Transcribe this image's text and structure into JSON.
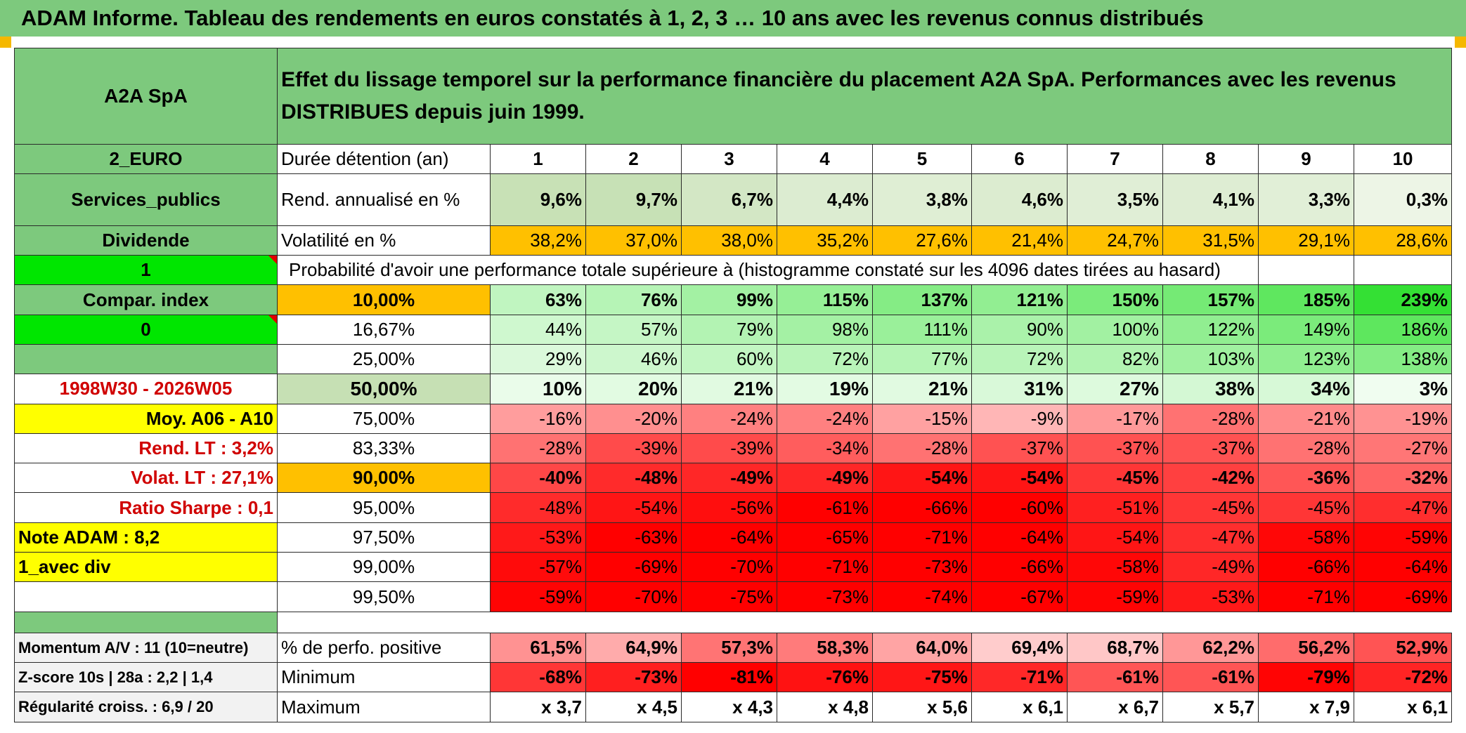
{
  "title": "ADAM Informe. Tableau des rendements en euros constatés à 1, 2, 3 … 10 ans avec les revenus connus distribués",
  "colors": {
    "header_green": "#7dc97d",
    "light_green": "#c6e0b4",
    "bright_green": "#00e600",
    "yellow": "#ffff00",
    "orange": "#ffc000",
    "red_text": "#d00000"
  },
  "side": {
    "name": "A2A SpA",
    "currency": "2_EURO",
    "sector": "Services_publics",
    "income_type": "Dividende",
    "flag1": "1",
    "compar_index": "Compar. index",
    "flag2": "0",
    "period": "1998W30 - 2026W05",
    "moy": "Moy. A06 - A10",
    "rend_lt": "Rend. LT :   3,2%",
    "volat_lt": "Volat. LT :   27,1%",
    "sharpe": "Ratio Sharpe :    0,1",
    "note": "Note ADAM : 8,2",
    "avec_div": "1_avec div",
    "momentum": "Momentum A/V : 11 (10=neutre)",
    "zscore": "Z-score 10s | 28a : 2,2 | 1,4",
    "regularite": "Régularité croiss. : 6,9 / 20"
  },
  "header": {
    "description": "Effet du lissage temporel sur la performance financière du placement A2A SpA. Performances avec les revenus DISTRIBUES depuis juin 1999."
  },
  "table": {
    "duration_label": "Durée détention (an)",
    "years": [
      "1",
      "2",
      "3",
      "4",
      "5",
      "6",
      "7",
      "8",
      "9",
      "10"
    ],
    "rend_label": "Rend. annualisé en %",
    "rend": [
      "9,6%",
      "9,7%",
      "6,7%",
      "4,4%",
      "3,8%",
      "4,6%",
      "3,5%",
      "4,1%",
      "3,3%",
      "0,3%"
    ],
    "vol_label": "Volatilité en %",
    "vol": [
      "38,2%",
      "37,0%",
      "38,0%",
      "35,2%",
      "27,6%",
      "21,4%",
      "24,7%",
      "31,5%",
      "29,1%",
      "28,6%"
    ],
    "prob_label": "Probabilité d'avoir une performance totale supérieure à (histogramme constaté sur les 4096 dates tirées au hasard)",
    "quantiles": [
      {
        "label": "10,00%",
        "values": [
          "63%",
          "76%",
          "99%",
          "115%",
          "137%",
          "121%",
          "150%",
          "157%",
          "185%",
          "239%"
        ]
      },
      {
        "label": "16,67%",
        "values": [
          "44%",
          "57%",
          "79%",
          "98%",
          "111%",
          "90%",
          "100%",
          "122%",
          "149%",
          "186%"
        ]
      },
      {
        "label": "25,00%",
        "values": [
          "29%",
          "46%",
          "60%",
          "72%",
          "77%",
          "72%",
          "82%",
          "103%",
          "123%",
          "138%"
        ]
      },
      {
        "label": "50,00%",
        "values": [
          "10%",
          "20%",
          "21%",
          "19%",
          "21%",
          "31%",
          "27%",
          "38%",
          "34%",
          "3%"
        ]
      },
      {
        "label": "75,00%",
        "values": [
          "-16%",
          "-20%",
          "-24%",
          "-24%",
          "-15%",
          "-9%",
          "-17%",
          "-28%",
          "-21%",
          "-19%"
        ]
      },
      {
        "label": "83,33%",
        "values": [
          "-28%",
          "-39%",
          "-39%",
          "-34%",
          "-28%",
          "-37%",
          "-37%",
          "-37%",
          "-28%",
          "-27%"
        ]
      },
      {
        "label": "90,00%",
        "values": [
          "-40%",
          "-48%",
          "-49%",
          "-49%",
          "-54%",
          "-54%",
          "-45%",
          "-42%",
          "-36%",
          "-32%"
        ]
      },
      {
        "label": "95,00%",
        "values": [
          "-48%",
          "-54%",
          "-56%",
          "-61%",
          "-66%",
          "-60%",
          "-51%",
          "-45%",
          "-45%",
          "-47%"
        ]
      },
      {
        "label": "97,50%",
        "values": [
          "-53%",
          "-63%",
          "-64%",
          "-65%",
          "-71%",
          "-64%",
          "-54%",
          "-47%",
          "-58%",
          "-59%"
        ]
      },
      {
        "label": "99,00%",
        "values": [
          "-57%",
          "-69%",
          "-70%",
          "-71%",
          "-73%",
          "-66%",
          "-58%",
          "-49%",
          "-66%",
          "-64%"
        ]
      },
      {
        "label": "99,50%",
        "values": [
          "-59%",
          "-70%",
          "-75%",
          "-73%",
          "-74%",
          "-67%",
          "-59%",
          "-53%",
          "-71%",
          "-69%"
        ]
      }
    ],
    "pos_label": "% de perfo. positive",
    "pos": [
      "61,5%",
      "64,9%",
      "57,3%",
      "58,3%",
      "64,0%",
      "69,4%",
      "68,7%",
      "62,2%",
      "56,2%",
      "52,9%"
    ],
    "min_label": "Minimum",
    "min": [
      "-68%",
      "-73%",
      "-81%",
      "-76%",
      "-75%",
      "-71%",
      "-61%",
      "-61%",
      "-79%",
      "-72%"
    ],
    "max_label": "Maximum",
    "max": [
      "x 3,7",
      "x 4,5",
      "x 4,3",
      "x 4,8",
      "x 5,6",
      "x 6,1",
      "x 6,7",
      "x 5,7",
      "x 7,9",
      "x 6,1"
    ]
  }
}
